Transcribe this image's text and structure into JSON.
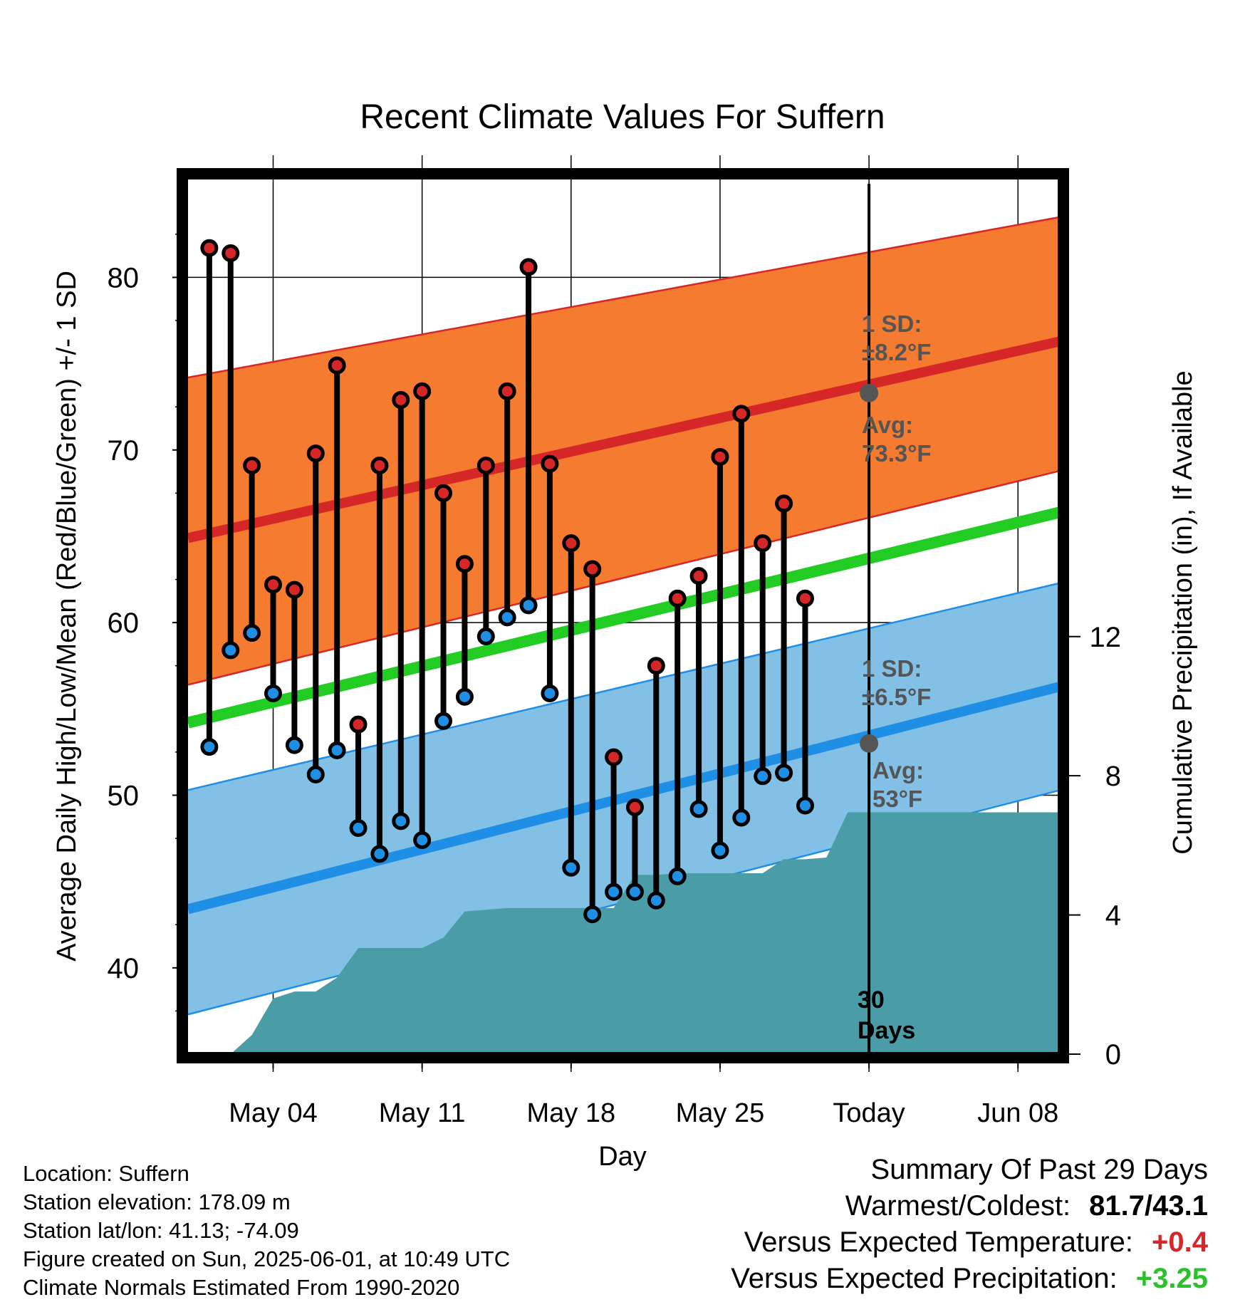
{
  "chart_data": {
    "type": "line",
    "title": "Recent Climate Values For Suffern",
    "xlabel": "Day",
    "ylabel": "Average Daily High/Low/Mean (Red/Blue/Green) +/- 1 SD",
    "y2label": "Cumulative Precipitation (in), If Available",
    "xlim": [
      "2025-04-30",
      "2025-06-10"
    ],
    "ylim": [
      35,
      86
    ],
    "y2lim": [
      0,
      25.3
    ],
    "x_ticks": [
      {
        "date": "2025-05-04",
        "label": "May 04"
      },
      {
        "date": "2025-05-11",
        "label": "May 11"
      },
      {
        "date": "2025-05-18",
        "label": "May 18"
      },
      {
        "date": "2025-05-25",
        "label": "May 25"
      },
      {
        "date": "2025-06-01",
        "label": "Today"
      },
      {
        "date": "2025-06-08",
        "label": "Jun 08"
      }
    ],
    "y_ticks": [
      "40",
      "50",
      "60",
      "70",
      "80"
    ],
    "y2_ticks": [
      "0",
      "4",
      "8",
      "12"
    ],
    "grid": true,
    "today_date": "2025-06-01",
    "days_label": "30\nDays",
    "normals": {
      "dates": [
        "2025-04-30",
        "2025-06-10"
      ],
      "high_mean": [
        64.9,
        76.3
      ],
      "high_upper": [
        74.2,
        83.5
      ],
      "high_lower": [
        56.4,
        68.8
      ],
      "low_mean": [
        43.4,
        56.3
      ],
      "low_upper": [
        50.3,
        62.3
      ],
      "low_lower": [
        37.3,
        50.3
      ],
      "daily_mean": [
        54.2,
        66.4
      ]
    },
    "high_sd_label": "1 SD:\n±8.2°F",
    "high_avg_label": "Avg:\n73.3°F",
    "low_sd_label": "1 SD:\n±6.5°F",
    "low_avg_label": "Avg:\n53°F",
    "today_high_avg": 73.3,
    "today_low_avg": 53,
    "series": [
      {
        "name": "High",
        "color": "#d62728",
        "dates": [
          "2025-05-01",
          "2025-05-02",
          "2025-05-03",
          "2025-05-04",
          "2025-05-05",
          "2025-05-06",
          "2025-05-07",
          "2025-05-08",
          "2025-05-09",
          "2025-05-10",
          "2025-05-11",
          "2025-05-12",
          "2025-05-13",
          "2025-05-14",
          "2025-05-15",
          "2025-05-16",
          "2025-05-17",
          "2025-05-18",
          "2025-05-19",
          "2025-05-20",
          "2025-05-21",
          "2025-05-22",
          "2025-05-23",
          "2025-05-24",
          "2025-05-25",
          "2025-05-26",
          "2025-05-27",
          "2025-05-28",
          "2025-05-29",
          "2025-05-31"
        ],
        "values": [
          81.7,
          81.4,
          69.1,
          62.2,
          61.9,
          69.8,
          74.9,
          54.1,
          69.1,
          72.9,
          73.4,
          67.5,
          63.4,
          69.1,
          73.4,
          80.6,
          69.2,
          64.6,
          63.1,
          52.2,
          49.3,
          57.5,
          61.4,
          62.7,
          69.6,
          72.1,
          64.6,
          66.9,
          61.4,
          null
        ]
      },
      {
        "name": "Low",
        "color": "#1f8fe5",
        "dates": [
          "2025-05-01",
          "2025-05-02",
          "2025-05-03",
          "2025-05-04",
          "2025-05-05",
          "2025-05-06",
          "2025-05-07",
          "2025-05-08",
          "2025-05-09",
          "2025-05-10",
          "2025-05-11",
          "2025-05-12",
          "2025-05-13",
          "2025-05-14",
          "2025-05-15",
          "2025-05-16",
          "2025-05-17",
          "2025-05-18",
          "2025-05-19",
          "2025-05-20",
          "2025-05-21",
          "2025-05-22",
          "2025-05-23",
          "2025-05-24",
          "2025-05-25",
          "2025-05-26",
          "2025-05-27",
          "2025-05-28",
          "2025-05-29",
          "2025-05-31"
        ],
        "values": [
          52.8,
          58.4,
          59.4,
          55.9,
          52.9,
          51.2,
          52.6,
          48.1,
          46.6,
          48.5,
          47.4,
          54.3,
          55.7,
          59.2,
          60.3,
          61.0,
          55.9,
          45.8,
          43.1,
          44.4,
          44.4,
          43.9,
          45.3,
          49.2,
          46.8,
          48.7,
          51.1,
          51.3,
          49.4,
          null
        ]
      }
    ],
    "precipitation": {
      "name": "Cumulative Precipitation",
      "color": "#4a9ca6",
      "dates": [
        "2025-05-01",
        "2025-05-02",
        "2025-05-03",
        "2025-05-04",
        "2025-05-05",
        "2025-05-06",
        "2025-05-07",
        "2025-05-08",
        "2025-05-09",
        "2025-05-10",
        "2025-05-11",
        "2025-05-12",
        "2025-05-13",
        "2025-05-14",
        "2025-05-15",
        "2025-05-16",
        "2025-05-17",
        "2025-05-18",
        "2025-05-19",
        "2025-05-20",
        "2025-05-21",
        "2025-05-22",
        "2025-05-23",
        "2025-05-24",
        "2025-05-25",
        "2025-05-26",
        "2025-05-27",
        "2025-05-28",
        "2025-05-29",
        "2025-05-30",
        "2025-05-31",
        "2025-06-01",
        "2025-06-10"
      ],
      "values": [
        0,
        0,
        0.55,
        1.6,
        1.8,
        1.8,
        2.2,
        3.05,
        3.05,
        3.05,
        3.05,
        3.35,
        4.1,
        4.15,
        4.2,
        4.2,
        4.2,
        4.2,
        4.2,
        4.2,
        5.15,
        5.15,
        5.2,
        5.2,
        5.2,
        5.2,
        5.2,
        5.6,
        5.6,
        5.65,
        6.95,
        6.95,
        6.95
      ]
    }
  },
  "meta": {
    "location": "Location: Suffern",
    "elevation": "Station elevation: 178.09 m",
    "latlon": "Station lat/lon: 41.13; -74.09",
    "created": "Figure created on Sun, 2025-06-01, at 10:49 UTC",
    "normals": "Climate Normals Estimated From 1990-2020"
  },
  "summary": {
    "title": "Summary Of Past 29 Days",
    "warm_cold_label": "Warmest/Coldest:",
    "warm_cold_value": "81.7/43.1",
    "temp_label": "Versus Expected Temperature:",
    "temp_value": "+0.4",
    "temp_color": "#d62728",
    "precip_label": "Versus Expected Precipitation:",
    "precip_value": "+3.25",
    "precip_color": "#2cc12c"
  },
  "colors": {
    "high_band": "#f47b30",
    "high_line": "#d62728",
    "low_band": "#82c0e6",
    "low_line": "#1f8fe5",
    "mean_line": "#22cc22",
    "precip_fill": "#4a9ca6",
    "annotation": "#555555"
  }
}
